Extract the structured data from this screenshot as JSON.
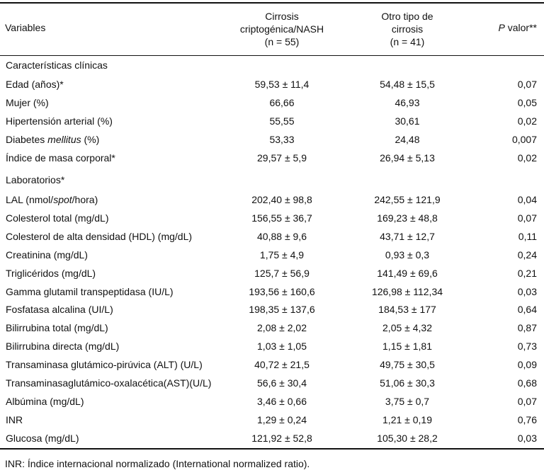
{
  "header": {
    "variables": "Variables",
    "col1_line1": "Cirrosis",
    "col1_line2": "criptogénica/NASH",
    "col1_line3": "(n = 55)",
    "col2_line1": "Otro tipo de",
    "col2_line2": "cirrosis",
    "col2_line3": "(n = 41)",
    "p_italic": "P",
    "p_rest": " valor**"
  },
  "sections": {
    "clinical": "Características clínicas",
    "labs": "Laboratorios*"
  },
  "clinical_rows": [
    {
      "label": "Edad (años)*",
      "v1": "59,53 ± 11,4",
      "v2": "54,48 ± 15,5",
      "p": "0,07"
    },
    {
      "label": "Mujer (%)",
      "v1": "66,66",
      "v2": "46,93",
      "p": "0,05"
    },
    {
      "label": "Hipertensión arterial (%)",
      "v1": "55,55",
      "v2": "30,61",
      "p": "0,02"
    },
    {
      "label_pre": "Diabetes ",
      "label_it": "mellitus",
      "label_post": " (%)",
      "v1": "53,33",
      "v2": "24,48",
      "p": "0,007"
    },
    {
      "label": "Índice de masa corporal*",
      "v1": "29,57 ± 5,9",
      "v2": "26,94 ± 5,13",
      "p": "0,02"
    }
  ],
  "lab_rows": [
    {
      "label_pre": "LAL (nmol/",
      "label_it": "spot",
      "label_post": "/hora)",
      "v1": "202,40 ± 98,8",
      "v2": "242,55 ± 121,9",
      "p": "0,04"
    },
    {
      "label": "Colesterol total (mg/dL)",
      "v1": "156,55 ± 36,7",
      "v2": "169,23 ± 48,8",
      "p": "0,07"
    },
    {
      "label": "Colesterol de alta densidad (HDL) (mg/dL)",
      "v1": "40,88 ± 9,6",
      "v2": "43,71 ± 12,7",
      "p": "0,11"
    },
    {
      "label": "Creatinina (mg/dL)",
      "v1": "1,75 ± 4,9",
      "v2": "0,93 ± 0,3",
      "p": "0,24"
    },
    {
      "label": "Triglicéridos (mg/dL)",
      "v1": "125,7 ± 56,9",
      "v2": "141,49 ± 69,6",
      "p": "0,21"
    },
    {
      "label": "Gamma glutamil transpeptidasa (IU/L)",
      "v1": "193,56 ± 160,6",
      "v2": "126,98 ± 112,34",
      "p": "0,03"
    },
    {
      "label": "Fosfatasa alcalina (UI/L)",
      "v1": "198,35 ± 137,6",
      "v2": "184,53 ± 177",
      "p": "0,64"
    },
    {
      "label": "Bilirrubina total (mg/dL)",
      "v1": "2,08 ± 2,02",
      "v2": "2,05 ± 4,32",
      "p": "0,87"
    },
    {
      "label": "Bilirrubina directa (mg/dL)",
      "v1": "1,03 ± 1,05",
      "v2": "1,15 ± 1,81",
      "p": "0,73"
    },
    {
      "label": "Transaminasa glutámico-pirúvica (ALT) (U/L)",
      "v1": "40,72 ± 21,5",
      "v2": "49,75 ± 30,5",
      "p": "0,09"
    },
    {
      "label": "Transaminasaglutámico-oxalacética(AST)(U/L)",
      "v1": "56,6 ± 30,4",
      "v2": "51,06 ± 30,3",
      "p": "0,68"
    },
    {
      "label": "Albúmina (mg/dL)",
      "v1": "3,46 ± 0,66",
      "v2": "3,75 ± 0,7",
      "p": "0,07"
    },
    {
      "label": "INR",
      "v1": "1,29 ± 0,24",
      "v2": "1,21 ± 0,19",
      "p": "0,76"
    },
    {
      "label": "Glucosa (mg/dL)",
      "v1": "121,92 ± 52,8",
      "v2": "105,30 ± 28,2",
      "p": "0,03"
    }
  ],
  "footnote": "INR: Índice internacional normalizado (International normalized ratio)."
}
